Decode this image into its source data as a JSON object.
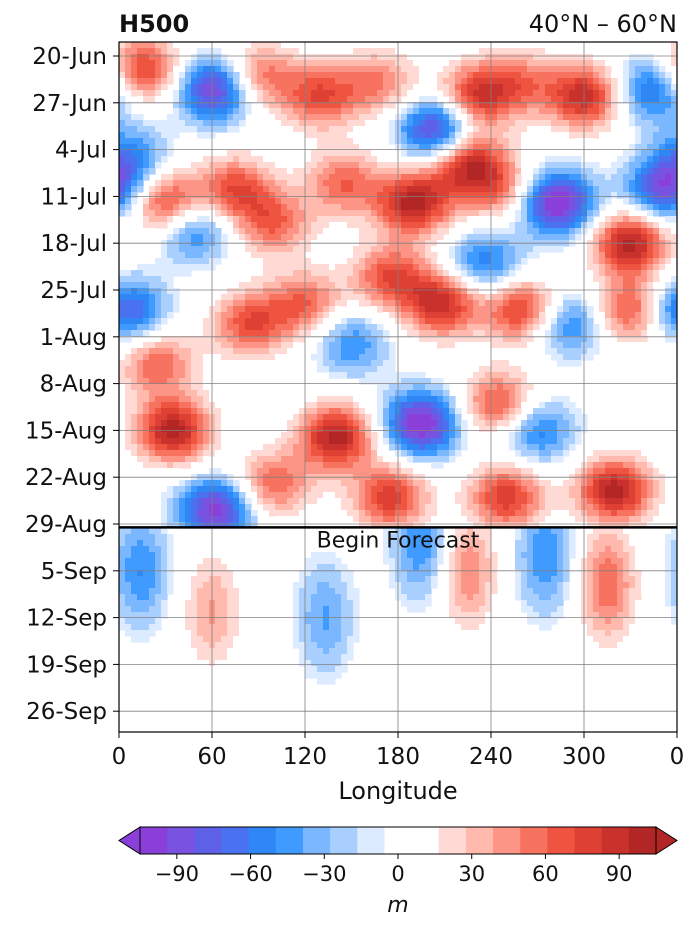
{
  "chart_data": {
    "type": "heatmap",
    "title_left": "H500",
    "title_right": "40°N – 60°N",
    "xlabel": "Longitude",
    "ylabel": "",
    "x_ticks": [
      "0",
      "60",
      "120",
      "180",
      "240",
      "300",
      "0"
    ],
    "x_tick_values": [
      0,
      60,
      120,
      180,
      240,
      300,
      360
    ],
    "xlim": [
      0,
      360
    ],
    "y_ticks": [
      "20-Jun",
      "27-Jun",
      "4-Jul",
      "11-Jul",
      "18-Jul",
      "25-Jul",
      "1-Aug",
      "8-Aug",
      "15-Aug",
      "22-Aug",
      "29-Aug",
      "5-Sep",
      "12-Sep",
      "19-Sep",
      "26-Sep"
    ],
    "grid": true,
    "annotation": "Begin Forecast",
    "forecast_start_day": 70.5,
    "colorbar": {
      "label": "m",
      "ticks": [
        "−90",
        "−60",
        "−30",
        "0",
        "30",
        "60",
        "90"
      ],
      "tick_values": [
        -90,
        -60,
        -30,
        0,
        30,
        60,
        90
      ],
      "range": [
        -105,
        105
      ],
      "colors": [
        "#8b3fd9",
        "#7a52e0",
        "#5f60e8",
        "#4a72f0",
        "#2f86f5",
        "#3f9bff",
        "#7ab7ff",
        "#a9cfff",
        "#dcebff",
        "#ffffff",
        "#ffffff",
        "#ffd9d4",
        "#ffb9ad",
        "#fc9585",
        "#f7735f",
        "#ee5440",
        "#de4034",
        "#c9312c",
        "#b32626"
      ],
      "extend": "both"
    },
    "anomaly_field_m": [
      {
        "lon": 15,
        "day": 2,
        "v": 80
      },
      {
        "lon": 62,
        "day": 5,
        "v": -100
      },
      {
        "lon": 90,
        "day": 3,
        "v": 60
      },
      {
        "lon": 130,
        "day": 6,
        "v": 70
      },
      {
        "lon": 168,
        "day": 4,
        "v": 50
      },
      {
        "lon": 205,
        "day": 11,
        "v": -100
      },
      {
        "lon": 230,
        "day": 6,
        "v": 80
      },
      {
        "lon": 258,
        "day": 4,
        "v": 50
      },
      {
        "lon": 300,
        "day": 6,
        "v": 90
      },
      {
        "lon": 345,
        "day": 5,
        "v": -70
      },
      {
        "lon": 330,
        "day": 28,
        "v": 100
      },
      {
        "lon": 8,
        "day": 15,
        "v": -50
      },
      {
        "lon": 30,
        "day": 22,
        "v": 80
      },
      {
        "lon": 75,
        "day": 20,
        "v": 70
      },
      {
        "lon": 100,
        "day": 25,
        "v": 60
      },
      {
        "lon": 145,
        "day": 19,
        "v": 60
      },
      {
        "lon": 190,
        "day": 22,
        "v": 100
      },
      {
        "lon": 245,
        "day": 20,
        "v": 50
      },
      {
        "lon": 225,
        "day": 16,
        "v": 90
      },
      {
        "lon": 283,
        "day": 22,
        "v": -110
      },
      {
        "lon": 352,
        "day": 20,
        "v": -90
      },
      {
        "lon": 48,
        "day": 26,
        "v": -60
      },
      {
        "lon": 260,
        "day": 38,
        "v": 80
      },
      {
        "lon": 236,
        "day": 31,
        "v": -60
      },
      {
        "lon": 5,
        "day": 38,
        "v": -80
      },
      {
        "lon": 25,
        "day": 46,
        "v": 60
      },
      {
        "lon": 85,
        "day": 40,
        "v": 70
      },
      {
        "lon": 120,
        "day": 37,
        "v": 60
      },
      {
        "lon": 175,
        "day": 33,
        "v": 70
      },
      {
        "lon": 208,
        "day": 37,
        "v": 90
      },
      {
        "lon": 330,
        "day": 38,
        "v": 70
      },
      {
        "lon": 290,
        "day": 40,
        "v": -60
      },
      {
        "lon": 150,
        "day": 43,
        "v": -50
      },
      {
        "lon": 35,
        "day": 56,
        "v": 100
      },
      {
        "lon": 140,
        "day": 57,
        "v": 100
      },
      {
        "lon": 195,
        "day": 55,
        "v": -110
      },
      {
        "lon": 245,
        "day": 52,
        "v": 70
      },
      {
        "lon": 270,
        "day": 56,
        "v": -60
      },
      {
        "lon": 320,
        "day": 65,
        "v": 100
      },
      {
        "lon": 62,
        "day": 68,
        "v": -100
      },
      {
        "lon": 175,
        "day": 66,
        "v": 80
      },
      {
        "lon": 250,
        "day": 66,
        "v": 80
      },
      {
        "lon": 100,
        "day": 64,
        "v": 60
      },
      {
        "lon": 14,
        "day": 77,
        "v": -50
      },
      {
        "lon": 60,
        "day": 83,
        "v": 40
      },
      {
        "lon": 133,
        "day": 84,
        "v": -40
      },
      {
        "lon": 195,
        "day": 73,
        "v": -50
      },
      {
        "lon": 225,
        "day": 77,
        "v": 50
      },
      {
        "lon": 275,
        "day": 75,
        "v": -50
      },
      {
        "lon": 315,
        "day": 79,
        "v": 60
      }
    ]
  }
}
